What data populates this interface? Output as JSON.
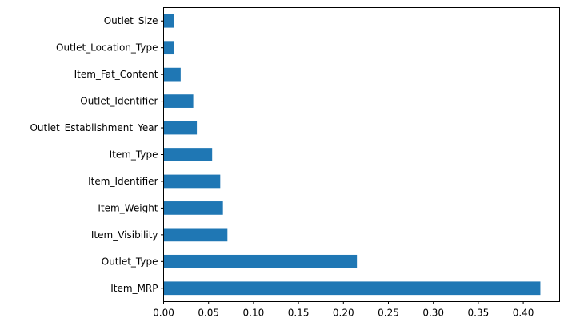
{
  "chart_data": {
    "type": "bar",
    "orientation": "horizontal",
    "title": "",
    "xlabel": "",
    "ylabel": "",
    "xlim": [
      0,
      0.4404
    ],
    "x_ticks": [
      "0.00",
      "0.05",
      "0.10",
      "0.15",
      "0.20",
      "0.25",
      "0.30",
      "0.35",
      "0.40"
    ],
    "grid": false,
    "legend": "none",
    "bar_color": "#1f77b4",
    "categories": [
      "Outlet_Size",
      "Outlet_Location_Type",
      "Item_Fat_Content",
      "Outlet_Identifier",
      "Outlet_Establishment_Year",
      "Item_Type",
      "Item_Identifier",
      "Item_Weight",
      "Item_Visibility",
      "Outlet_Type",
      "Item_MRP"
    ],
    "values": [
      0.012,
      0.012,
      0.019,
      0.033,
      0.037,
      0.054,
      0.063,
      0.066,
      0.071,
      0.215,
      0.419
    ]
  }
}
